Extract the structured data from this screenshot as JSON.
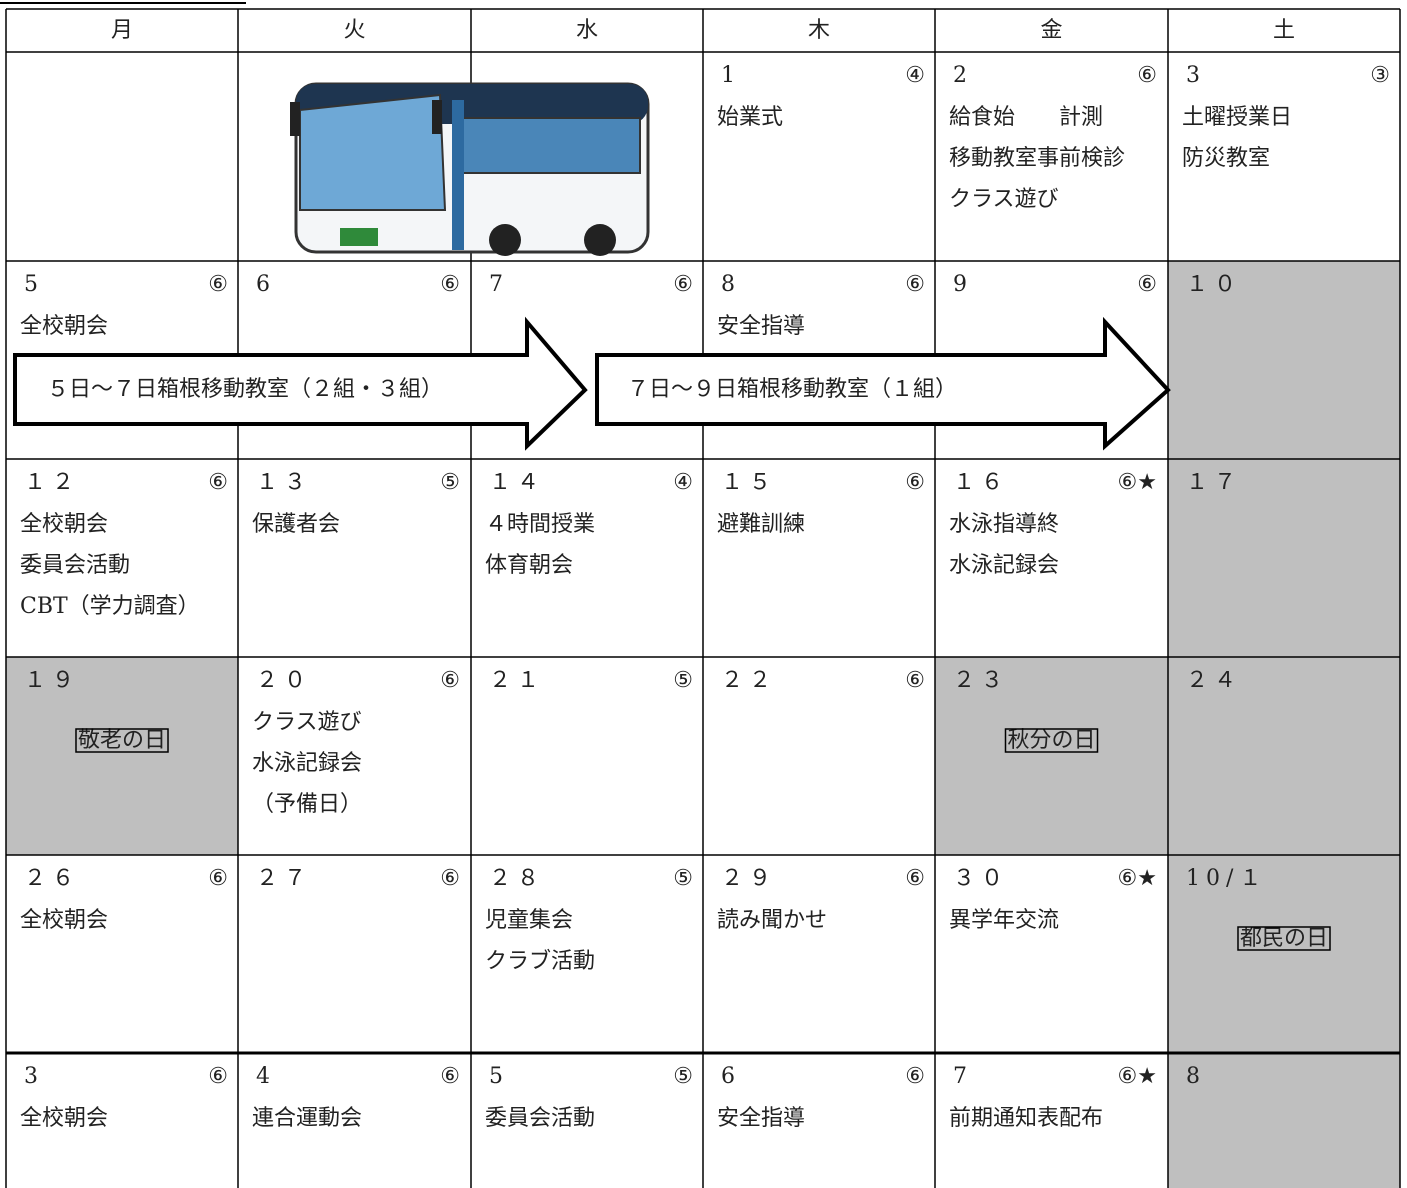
{
  "header": {
    "days": [
      "月",
      "火",
      "水",
      "木",
      "金",
      "土"
    ]
  },
  "weeks": [
    [
      {},
      {},
      {},
      {
        "date": "1",
        "periods": "④",
        "events": [
          "始業式"
        ]
      },
      {
        "date": "2",
        "periods": "⑥",
        "events": [
          "給食始　　計測",
          "移動教室事前検診",
          "クラス遊び"
        ]
      },
      {
        "date": "3",
        "periods": "③",
        "events": [
          "土曜授業日",
          "防災教室"
        ]
      }
    ],
    [
      {
        "date": "5",
        "periods": "⑥",
        "events": [
          "全校朝会"
        ]
      },
      {
        "date": "6",
        "periods": "⑥"
      },
      {
        "date": "7",
        "periods": "⑥"
      },
      {
        "date": "8",
        "periods": "⑥",
        "events": [
          "安全指導"
        ]
      },
      {
        "date": "9",
        "periods": "⑥"
      },
      {
        "date": "１０",
        "shaded": true
      }
    ],
    [
      {
        "date": "１２",
        "periods": "⑥",
        "events": [
          "全校朝会",
          "委員会活動",
          "CBT（学力調査）"
        ]
      },
      {
        "date": "１３",
        "periods": "⑤",
        "events": [
          "保護者会"
        ]
      },
      {
        "date": "１４",
        "periods": "④",
        "events": [
          "４時間授業",
          "体育朝会"
        ]
      },
      {
        "date": "１５",
        "periods": "⑥",
        "events": [
          "避難訓練"
        ]
      },
      {
        "date": "１６",
        "periods": "⑥★",
        "events": [
          "水泳指導終",
          "水泳記録会"
        ]
      },
      {
        "date": "１７",
        "shaded": true
      }
    ],
    [
      {
        "date": "１９",
        "holiday": "敬老の日",
        "shaded": true
      },
      {
        "date": "２０",
        "periods": "⑥",
        "events": [
          "クラス遊び",
          "水泳記録会",
          "（予備日）"
        ]
      },
      {
        "date": "２１",
        "periods": "⑤"
      },
      {
        "date": "２２",
        "periods": "⑥"
      },
      {
        "date": "２３",
        "holiday": "秋分の日",
        "shaded": true
      },
      {
        "date": "２４",
        "shaded": true
      }
    ],
    [
      {
        "date": "２６",
        "periods": "⑥",
        "events": [
          "全校朝会"
        ]
      },
      {
        "date": "２７",
        "periods": "⑥"
      },
      {
        "date": "２８",
        "periods": "⑤",
        "events": [
          "児童集会",
          "クラブ活動"
        ]
      },
      {
        "date": "２９",
        "periods": "⑥",
        "events": [
          "読み聞かせ"
        ]
      },
      {
        "date": "３０",
        "periods": "⑥★",
        "events": [
          "異学年交流"
        ]
      },
      {
        "date": "10/１",
        "holiday": "都民の日",
        "shaded": true
      }
    ],
    [
      {
        "date": "3",
        "periods": "⑥",
        "events": [
          "全校朝会"
        ]
      },
      {
        "date": "4",
        "periods": "⑥",
        "events": [
          "連合運動会"
        ]
      },
      {
        "date": "5",
        "periods": "⑤",
        "events": [
          "委員会活動"
        ]
      },
      {
        "date": "6",
        "periods": "⑥",
        "events": [
          "安全指導"
        ]
      },
      {
        "date": "7",
        "periods": "⑥★",
        "events": [
          "前期通知表配布"
        ]
      },
      {
        "date": "8",
        "shaded": true
      }
    ]
  ],
  "arrows": [
    {
      "label": "５日～７日箱根移動教室（２組・３組）"
    },
    {
      "label": "７日～９日箱根移動教室（１組）"
    }
  ]
}
